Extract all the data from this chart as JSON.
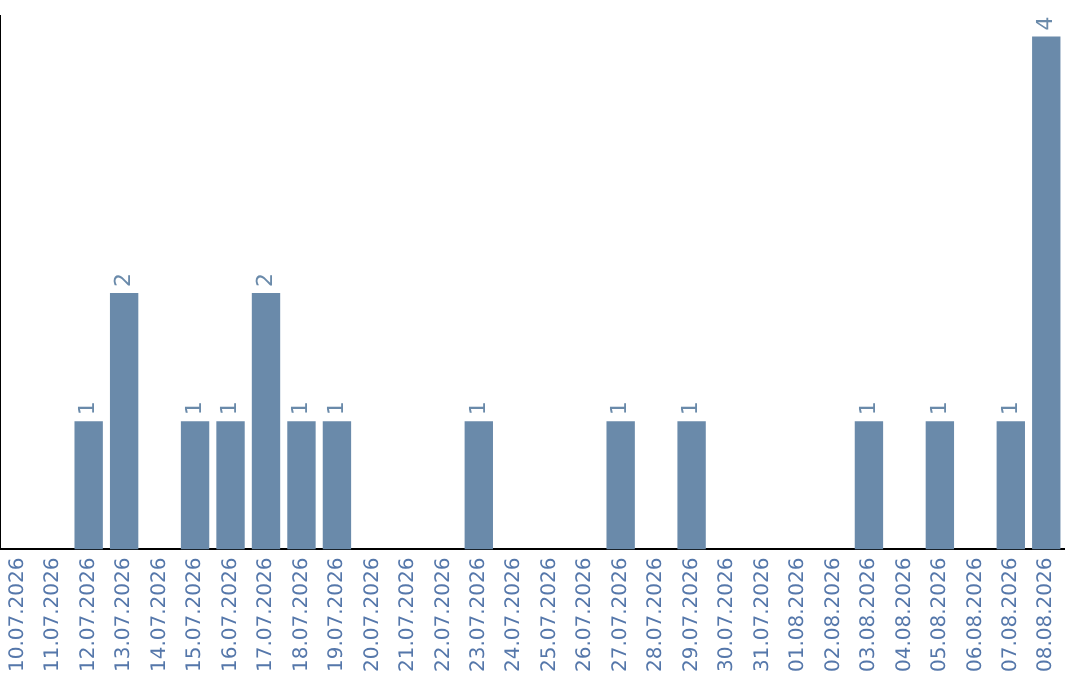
{
  "chart_data": {
    "type": "bar",
    "categories": [
      "10.07.2026",
      "11.07.2026",
      "12.07.2026",
      "13.07.2026",
      "14.07.2026",
      "15.07.2026",
      "16.07.2026",
      "17.07.2026",
      "18.07.2026",
      "19.07.2026",
      "20.07.2026",
      "21.07.2026",
      "22.07.2026",
      "23.07.2026",
      "24.07.2026",
      "25.07.2026",
      "26.07.2026",
      "27.07.2026",
      "28.07.2026",
      "29.07.2026",
      "30.07.2026",
      "31.07.2026",
      "01.08.2026",
      "02.08.2026",
      "03.08.2026",
      "04.08.2026",
      "05.08.2026",
      "06.08.2026",
      "07.08.2026",
      "08.08.2026"
    ],
    "values": [
      0,
      0,
      1,
      2,
      0,
      1,
      1,
      2,
      1,
      1,
      0,
      0,
      0,
      1,
      0,
      0,
      0,
      1,
      0,
      1,
      0,
      0,
      0,
      0,
      1,
      0,
      1,
      0,
      1,
      4
    ],
    "value_labels": [
      null,
      null,
      "1",
      "2",
      null,
      "1",
      "1",
      "2",
      "1",
      "1",
      null,
      null,
      null,
      "1",
      null,
      null,
      null,
      "1",
      null,
      "1",
      null,
      null,
      null,
      null,
      "1",
      null,
      "1",
      null,
      "1",
      "4"
    ],
    "color": "#6a8aaa",
    "ylim": [
      0,
      4.16
    ],
    "tick_labels": "x",
    "grid": false,
    "legend": false
  }
}
